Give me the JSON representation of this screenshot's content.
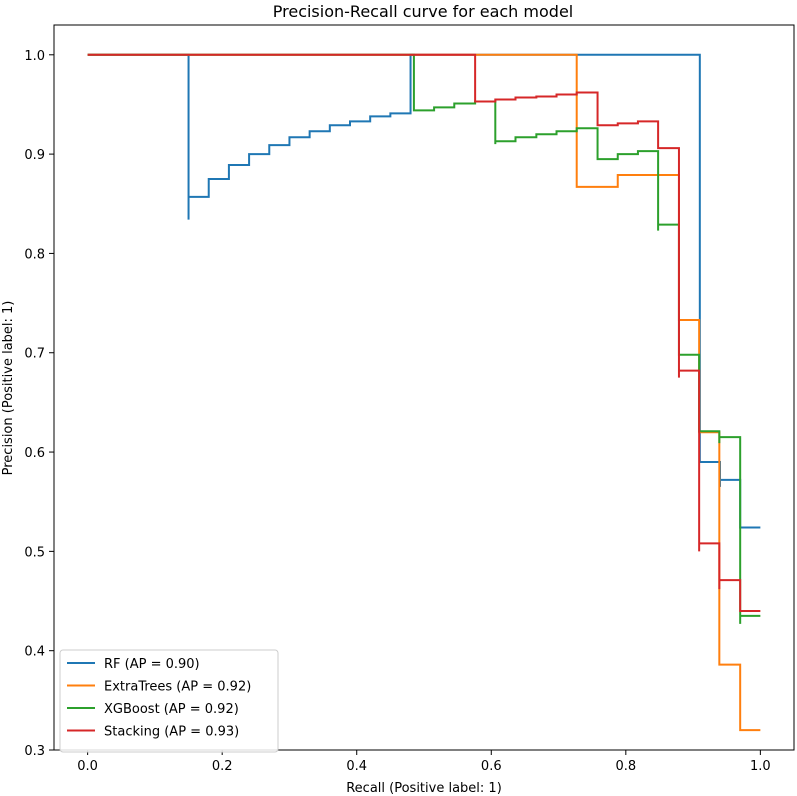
{
  "chart_data": {
    "type": "line",
    "title": "Precision-Recall curve for each model",
    "xlabel": "Recall (Positive label: 1)",
    "ylabel": "Precision (Positive label: 1)",
    "xlim": [
      -0.05,
      1.05
    ],
    "ylim": [
      0.3,
      1.03
    ],
    "xticks": [
      "0.0",
      "0.2",
      "0.4",
      "0.6",
      "0.8",
      "1.0"
    ],
    "yticks": [
      "0.3",
      "0.4",
      "0.5",
      "0.6",
      "0.7",
      "0.8",
      "0.9",
      "1.0"
    ],
    "grid": false,
    "legend_position": "lower-left",
    "series": [
      {
        "name": "RF (AP = 0.90)",
        "color": "#1f77b4",
        "points": [
          [
            0.0,
            1.0
          ],
          [
            0.15,
            1.0
          ],
          [
            0.15,
            0.834
          ],
          [
            0.15,
            0.857
          ],
          [
            0.18,
            0.857
          ],
          [
            0.18,
            0.875
          ],
          [
            0.21,
            0.875
          ],
          [
            0.21,
            0.889
          ],
          [
            0.24,
            0.889
          ],
          [
            0.24,
            0.9
          ],
          [
            0.27,
            0.9
          ],
          [
            0.27,
            0.909
          ],
          [
            0.3,
            0.909
          ],
          [
            0.3,
            0.917
          ],
          [
            0.33,
            0.917
          ],
          [
            0.33,
            0.923
          ],
          [
            0.36,
            0.923
          ],
          [
            0.36,
            0.929
          ],
          [
            0.39,
            0.929
          ],
          [
            0.39,
            0.933
          ],
          [
            0.42,
            0.933
          ],
          [
            0.42,
            0.938
          ],
          [
            0.45,
            0.938
          ],
          [
            0.45,
            0.941
          ],
          [
            0.48,
            0.941
          ],
          [
            0.48,
            1.0
          ],
          [
            0.91,
            1.0
          ],
          [
            0.91,
            0.857
          ],
          [
            0.91,
            0.59
          ],
          [
            0.94,
            0.59
          ],
          [
            0.94,
            0.565
          ],
          [
            0.94,
            0.572
          ],
          [
            0.97,
            0.572
          ],
          [
            0.97,
            0.524
          ],
          [
            1.0,
            0.524
          ]
        ]
      },
      {
        "name": "ExtraTrees (AP = 0.92)",
        "color": "#ff7f0e",
        "points": [
          [
            0.0,
            1.0
          ],
          [
            0.727,
            1.0
          ],
          [
            0.727,
            0.867
          ],
          [
            0.788,
            0.867
          ],
          [
            0.788,
            0.879
          ],
          [
            0.879,
            0.879
          ],
          [
            0.879,
            0.733
          ],
          [
            0.909,
            0.733
          ],
          [
            0.909,
            0.62
          ],
          [
            0.939,
            0.62
          ],
          [
            0.939,
            0.386
          ],
          [
            0.97,
            0.386
          ],
          [
            0.97,
            0.32
          ],
          [
            1.0,
            0.32
          ]
        ]
      },
      {
        "name": "XGBoost (AP = 0.92)",
        "color": "#2ca02c",
        "points": [
          [
            0.0,
            1.0
          ],
          [
            0.485,
            1.0
          ],
          [
            0.485,
            0.944
          ],
          [
            0.515,
            0.944
          ],
          [
            0.515,
            0.947
          ],
          [
            0.545,
            0.947
          ],
          [
            0.545,
            0.951
          ],
          [
            0.576,
            0.951
          ],
          [
            0.576,
            0.953
          ],
          [
            0.606,
            0.953
          ],
          [
            0.606,
            0.91
          ],
          [
            0.606,
            0.913
          ],
          [
            0.636,
            0.913
          ],
          [
            0.636,
            0.917
          ],
          [
            0.667,
            0.917
          ],
          [
            0.667,
            0.92
          ],
          [
            0.697,
            0.92
          ],
          [
            0.697,
            0.923
          ],
          [
            0.727,
            0.923
          ],
          [
            0.727,
            0.926
          ],
          [
            0.758,
            0.926
          ],
          [
            0.758,
            0.895
          ],
          [
            0.788,
            0.895
          ],
          [
            0.788,
            0.9
          ],
          [
            0.818,
            0.9
          ],
          [
            0.818,
            0.903
          ],
          [
            0.848,
            0.903
          ],
          [
            0.848,
            0.823
          ],
          [
            0.848,
            0.829
          ],
          [
            0.879,
            0.829
          ],
          [
            0.879,
            0.698
          ],
          [
            0.909,
            0.698
          ],
          [
            0.909,
            0.621
          ],
          [
            0.939,
            0.621
          ],
          [
            0.939,
            0.609
          ],
          [
            0.939,
            0.615
          ],
          [
            0.97,
            0.615
          ],
          [
            0.97,
            0.427
          ],
          [
            0.97,
            0.435
          ],
          [
            1.0,
            0.435
          ]
        ]
      },
      {
        "name": "Stacking (AP = 0.93)",
        "color": "#d62728",
        "points": [
          [
            0.0,
            1.0
          ],
          [
            0.576,
            1.0
          ],
          [
            0.576,
            0.953
          ],
          [
            0.606,
            0.953
          ],
          [
            0.606,
            0.955
          ],
          [
            0.636,
            0.955
          ],
          [
            0.636,
            0.957
          ],
          [
            0.667,
            0.957
          ],
          [
            0.667,
            0.958
          ],
          [
            0.697,
            0.958
          ],
          [
            0.697,
            0.96
          ],
          [
            0.727,
            0.96
          ],
          [
            0.727,
            0.962
          ],
          [
            0.758,
            0.962
          ],
          [
            0.758,
            0.929
          ],
          [
            0.788,
            0.929
          ],
          [
            0.788,
            0.931
          ],
          [
            0.818,
            0.931
          ],
          [
            0.818,
            0.933
          ],
          [
            0.848,
            0.933
          ],
          [
            0.848,
            0.906
          ],
          [
            0.879,
            0.906
          ],
          [
            0.879,
            0.675
          ],
          [
            0.879,
            0.682
          ],
          [
            0.909,
            0.682
          ],
          [
            0.909,
            0.5
          ],
          [
            0.909,
            0.508
          ],
          [
            0.939,
            0.508
          ],
          [
            0.939,
            0.462
          ],
          [
            0.939,
            0.471
          ],
          [
            0.97,
            0.471
          ],
          [
            0.97,
            0.44
          ],
          [
            1.0,
            0.44
          ]
        ]
      }
    ]
  }
}
